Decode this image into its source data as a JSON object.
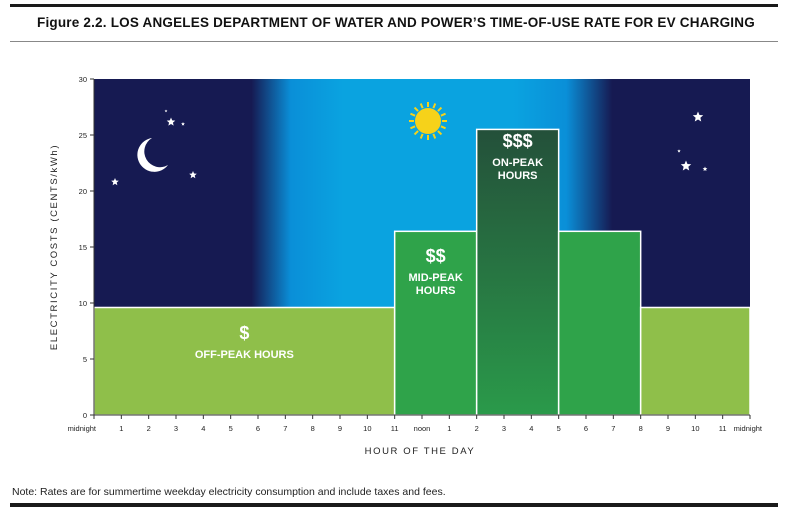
{
  "figure": {
    "label": "Figure 2.2.",
    "title": "LOS ANGELES DEPARTMENT OF WATER AND POWER’S TIME-OF-USE RATE FOR EV CHARGING",
    "note": "Note: Rates are for summertime weekday electricity consumption and include taxes and fees."
  },
  "chart_data": {
    "type": "bar",
    "xlabel": "HOUR OF THE DAY",
    "ylabel": "ELECTRICITY COSTS (CENTS/kWh)",
    "ylim": [
      0,
      30
    ],
    "y_ticks": [
      0,
      5,
      10,
      15,
      20,
      25,
      30
    ],
    "x_ticks": [
      "midnight",
      "1",
      "2",
      "3",
      "4",
      "5",
      "6",
      "7",
      "8",
      "9",
      "10",
      "11",
      "noon",
      "1",
      "2",
      "3",
      "4",
      "5",
      "6",
      "7",
      "8",
      "9",
      "10",
      "11",
      "midnight"
    ],
    "grid": false,
    "segments": [
      {
        "zone": "off-peak",
        "start_hour": 0,
        "end_hour": 11,
        "value": 9.6
      },
      {
        "zone": "mid-peak",
        "start_hour": 11,
        "end_hour": 14,
        "value": 16.4
      },
      {
        "zone": "on-peak",
        "start_hour": 14,
        "end_hour": 17,
        "value": 25.5
      },
      {
        "zone": "mid-peak",
        "start_hour": 17,
        "end_hour": 20,
        "value": 16.4
      },
      {
        "zone": "off-peak",
        "start_hour": 20,
        "end_hour": 24,
        "value": 9.6
      }
    ],
    "zone_labels": [
      {
        "symbol": "$",
        "text_lines": [
          "OFF-PEAK HOURS"
        ],
        "center_hour": 5.5
      },
      {
        "symbol": "$$",
        "text_lines": [
          "MID-PEAK",
          "HOURS"
        ],
        "center_hour": 12.5
      },
      {
        "symbol": "$$$",
        "text_lines": [
          "ON-PEAK",
          "HOURS"
        ],
        "center_hour": 15.5
      }
    ],
    "colors": {
      "night": "#161a52",
      "day": "#0aa3e0",
      "off_peak": "#8fbf4a",
      "mid_peak": "#2fa34a",
      "on_peak": "#1f5a3a",
      "sun": "#f6d21a"
    },
    "background_icons": [
      "moon-icon",
      "star-icon",
      "sun-icon"
    ]
  }
}
